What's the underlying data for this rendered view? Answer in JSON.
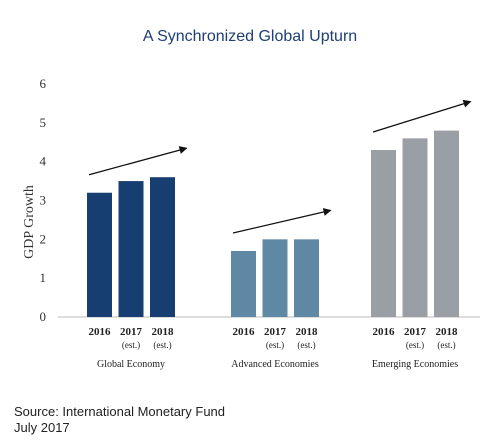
{
  "chart_data": {
    "type": "bar",
    "title": "A Synchronized Global Upturn",
    "ylabel": "GDP Growth",
    "ylim": [
      0,
      6
    ],
    "yticks": [
      0,
      1,
      2,
      3,
      4,
      5,
      6
    ],
    "groups": [
      {
        "name": "Global Economy",
        "color": "#163e70",
        "bars": [
          {
            "label": "2016",
            "sub": "",
            "value": 3.2
          },
          {
            "label": "2017",
            "sub": "(est.)",
            "value": 3.5
          },
          {
            "label": "2018",
            "sub": "(est.)",
            "value": 3.6
          }
        ]
      },
      {
        "name": "Advanced Economies",
        "color": "#5f88a4",
        "bars": [
          {
            "label": "2016",
            "sub": "",
            "value": 1.7
          },
          {
            "label": "2017",
            "sub": "(est.)",
            "value": 2.0
          },
          {
            "label": "2018",
            "sub": "(est.)",
            "value": 2.0
          }
        ]
      },
      {
        "name": "Emerging Economies",
        "color": "#999fa5",
        "bars": [
          {
            "label": "2016",
            "sub": "",
            "value": 4.3
          },
          {
            "label": "2017",
            "sub": "(est.)",
            "value": 4.6
          },
          {
            "label": "2018",
            "sub": "(est.)",
            "value": 4.8
          }
        ]
      }
    ],
    "trend_arrows": true,
    "grid": false
  },
  "source": {
    "line1": "Source: International Monetary Fund",
    "line2": "July 2017"
  }
}
